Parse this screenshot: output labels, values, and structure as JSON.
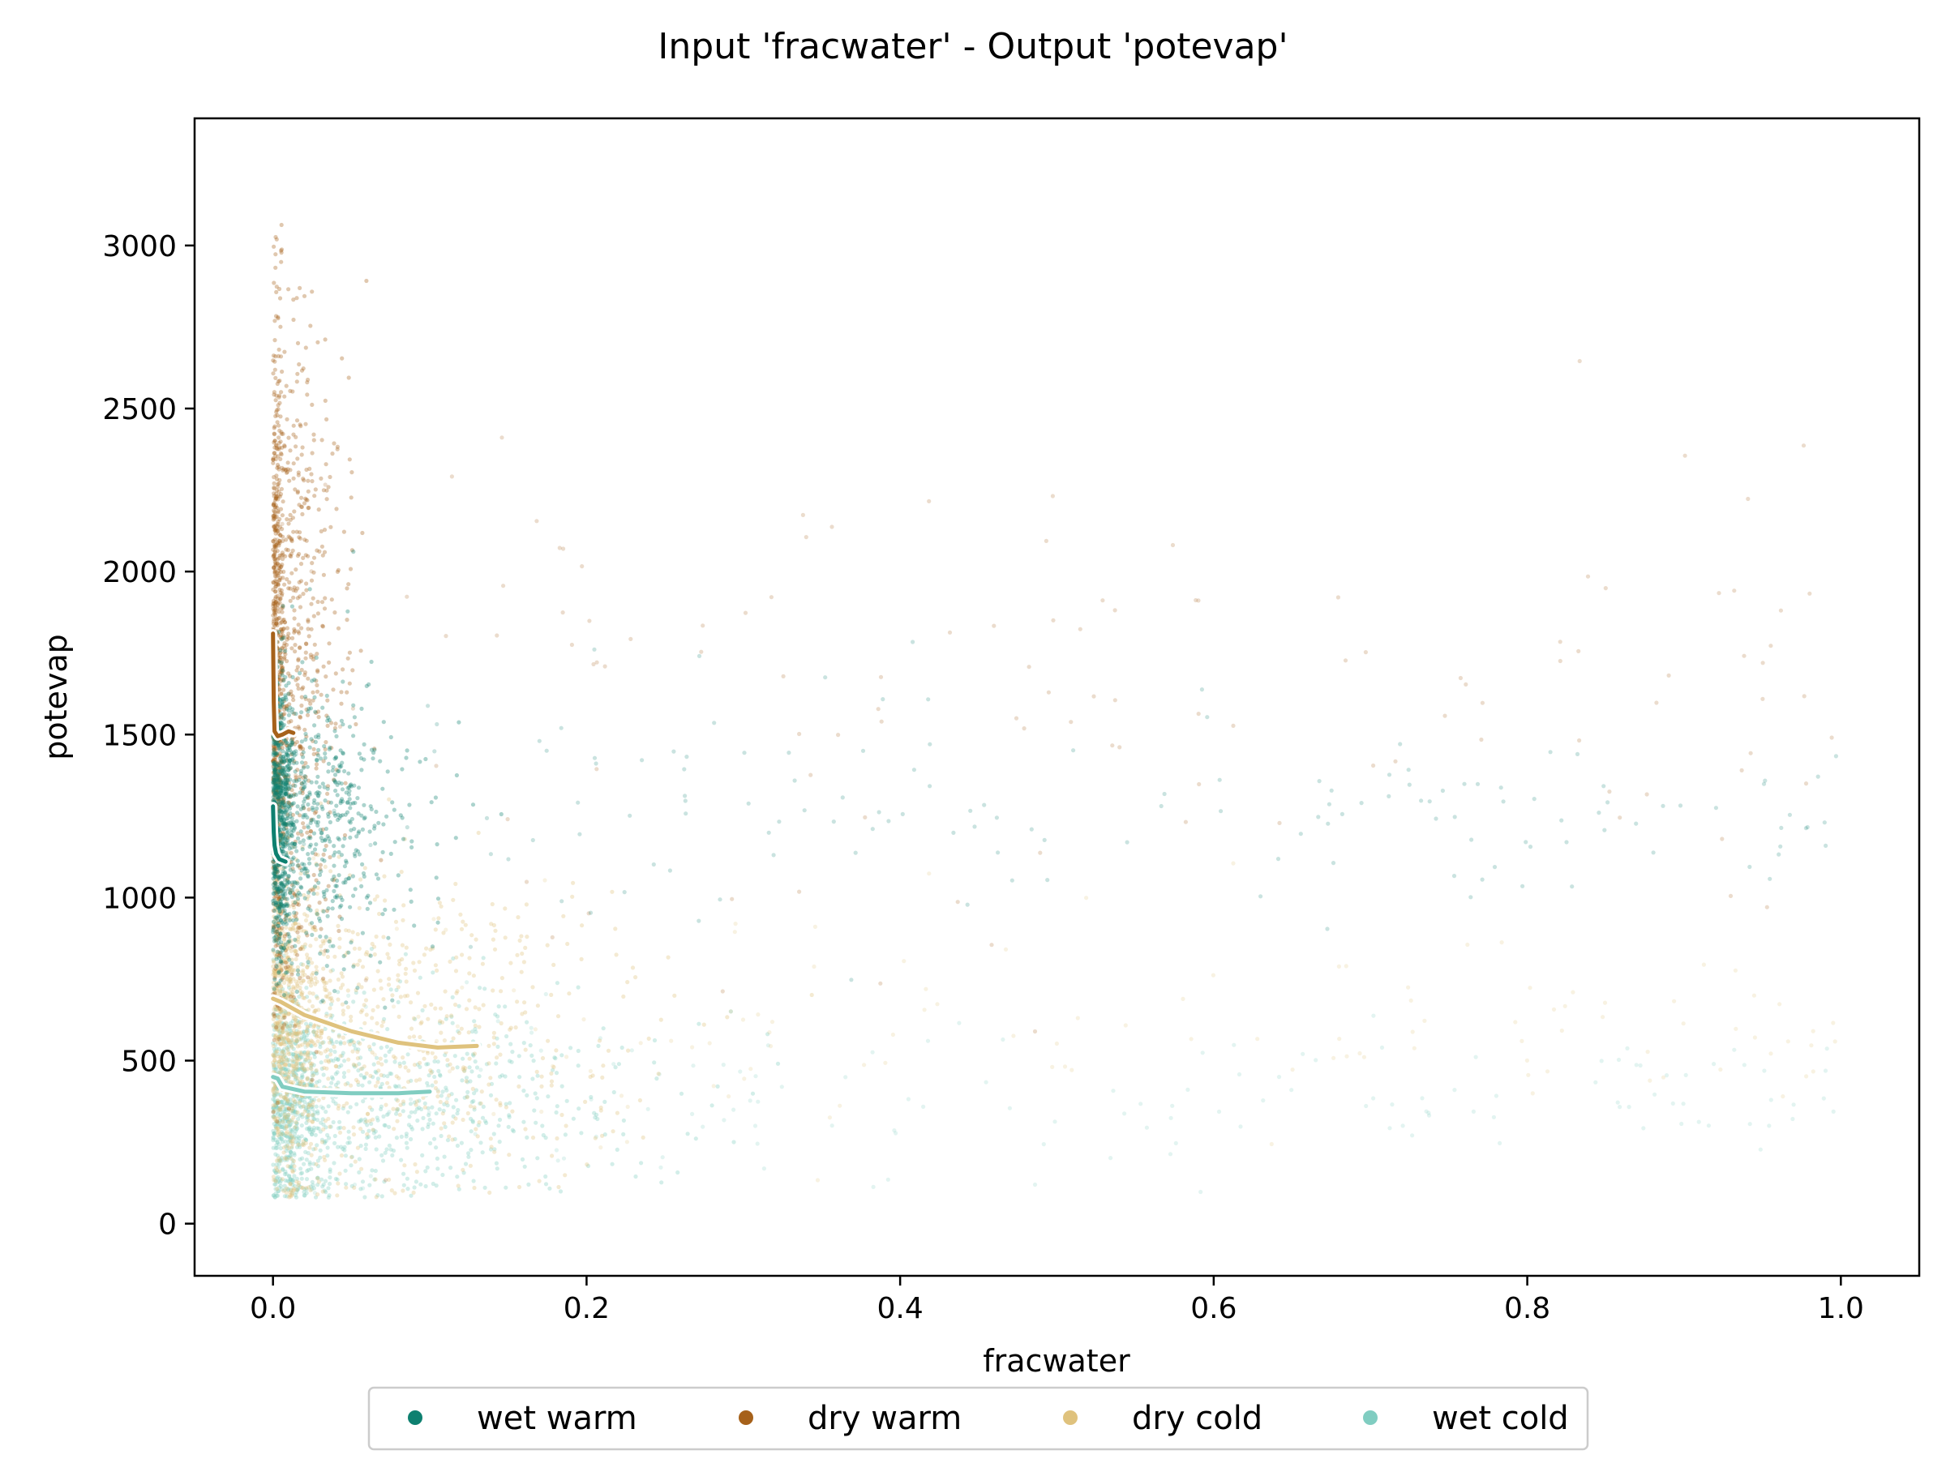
{
  "chart_data": {
    "type": "scatter",
    "title": "Input 'fracwater' - Output 'potevap'",
    "xlabel": "fracwater",
    "ylabel": "potevap",
    "xlim": [
      -0.05,
      1.05
    ],
    "ylim": [
      -160,
      3390
    ],
    "x_ticks": [
      0.0,
      0.2,
      0.4,
      0.6,
      0.8,
      1.0
    ],
    "x_tick_labels": [
      "0.0",
      "0.2",
      "0.4",
      "0.6",
      "0.8",
      "1.0"
    ],
    "y_ticks": [
      0,
      500,
      1000,
      1500,
      2000,
      2500,
      3000
    ],
    "y_tick_labels": [
      "0",
      "500",
      "1000",
      "1500",
      "2000",
      "2500",
      "3000"
    ],
    "grid": false,
    "legend_position": "bottom-center",
    "series": [
      {
        "name": "wet warm",
        "color": "#0e8070",
        "cloud": {
          "center_x": 0.03,
          "spread_x": 0.04,
          "center_y": 1250,
          "spread_y": 220
        },
        "trend": {
          "x": [
            0.0,
            0.0005,
            0.001,
            0.002,
            0.004,
            0.008
          ],
          "y": [
            1280,
            1200,
            1160,
            1135,
            1118,
            1110
          ]
        }
      },
      {
        "name": "dry warm",
        "color": "#a6611a",
        "cloud": {
          "center_x": 0.01,
          "spread_x": 0.02,
          "center_y": 1700,
          "spread_y": 500
        },
        "trend": {
          "x": [
            0.0,
            0.0005,
            0.001,
            0.003,
            0.006,
            0.01,
            0.013
          ],
          "y": [
            1810,
            1600,
            1510,
            1495,
            1500,
            1510,
            1505
          ]
        }
      },
      {
        "name": "dry cold",
        "color": "#dfc27d",
        "cloud": {
          "center_x": 0.08,
          "spread_x": 0.1,
          "center_y": 600,
          "spread_y": 250
        },
        "trend": {
          "x": [
            0.0,
            0.005,
            0.02,
            0.05,
            0.08,
            0.105,
            0.13
          ],
          "y": [
            690,
            680,
            640,
            590,
            555,
            540,
            545
          ]
        }
      },
      {
        "name": "wet cold",
        "color": "#80cdc1",
        "cloud": {
          "center_x": 0.07,
          "spread_x": 0.1,
          "center_y": 380,
          "spread_y": 170
        },
        "trend": {
          "x": [
            0.0,
            0.003,
            0.006,
            0.02,
            0.05,
            0.08,
            0.1
          ],
          "y": [
            450,
            445,
            420,
            405,
            400,
            400,
            405
          ]
        }
      }
    ]
  }
}
